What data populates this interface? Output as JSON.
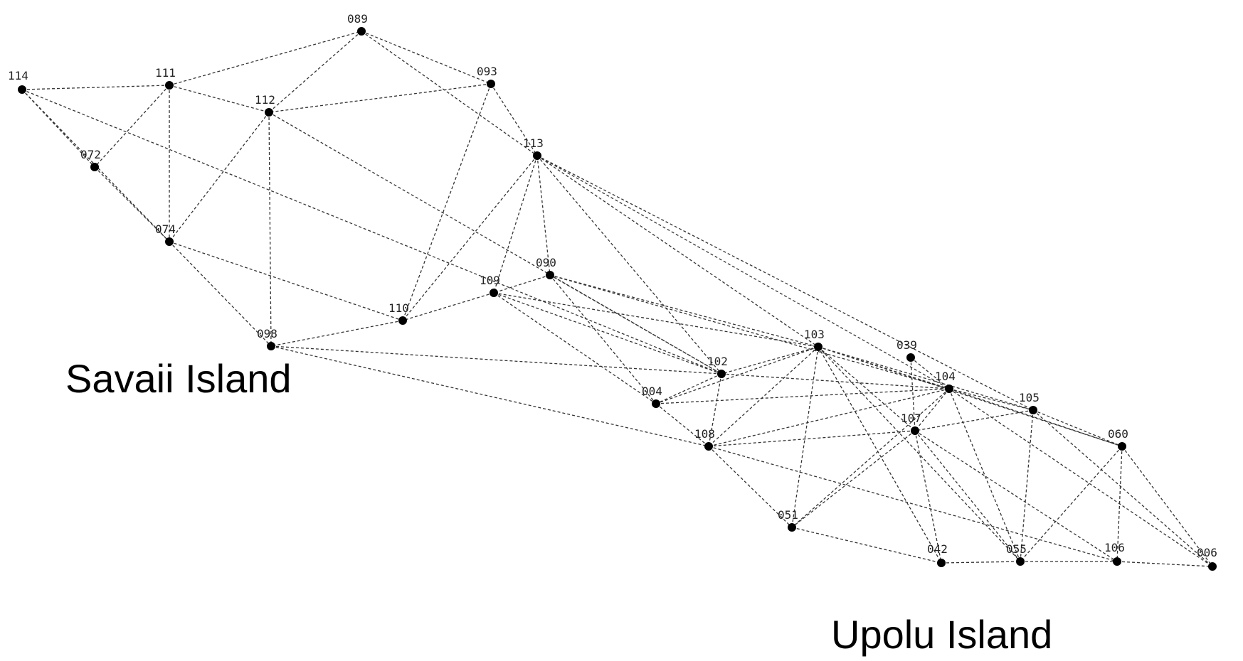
{
  "diagram": {
    "nodes": [
      {
        "id": "114",
        "label": "114"
      },
      {
        "id": "111",
        "label": "111"
      },
      {
        "id": "089",
        "label": "089"
      },
      {
        "id": "093",
        "label": "093"
      },
      {
        "id": "112",
        "label": "112"
      },
      {
        "id": "072",
        "label": "072"
      },
      {
        "id": "113",
        "label": "113"
      },
      {
        "id": "074",
        "label": "074"
      },
      {
        "id": "090",
        "label": "090"
      },
      {
        "id": "109",
        "label": "109"
      },
      {
        "id": "110",
        "label": "110"
      },
      {
        "id": "098",
        "label": "098"
      },
      {
        "id": "103",
        "label": "103"
      },
      {
        "id": "039",
        "label": "039"
      },
      {
        "id": "102",
        "label": "102"
      },
      {
        "id": "104",
        "label": "104"
      },
      {
        "id": "004",
        "label": "004"
      },
      {
        "id": "105",
        "label": "105"
      },
      {
        "id": "107",
        "label": "107"
      },
      {
        "id": "108",
        "label": "108"
      },
      {
        "id": "060",
        "label": "060"
      },
      {
        "id": "051",
        "label": "051"
      },
      {
        "id": "042",
        "label": "042"
      },
      {
        "id": "055",
        "label": "055"
      },
      {
        "id": "106",
        "label": "106"
      },
      {
        "id": "006",
        "label": "006"
      }
    ],
    "edges": [
      [
        "114",
        "111"
      ],
      [
        "114",
        "072"
      ],
      [
        "114",
        "074"
      ],
      [
        "114",
        "102"
      ],
      [
        "111",
        "089"
      ],
      [
        "111",
        "072"
      ],
      [
        "111",
        "074"
      ],
      [
        "111",
        "112"
      ],
      [
        "089",
        "112"
      ],
      [
        "089",
        "093"
      ],
      [
        "089",
        "113"
      ],
      [
        "093",
        "112"
      ],
      [
        "093",
        "113"
      ],
      [
        "093",
        "110"
      ],
      [
        "112",
        "098"
      ],
      [
        "112",
        "074"
      ],
      [
        "112",
        "102"
      ],
      [
        "072",
        "074"
      ],
      [
        "074",
        "098"
      ],
      [
        "074",
        "110"
      ],
      [
        "113",
        "110"
      ],
      [
        "113",
        "109"
      ],
      [
        "113",
        "090"
      ],
      [
        "113",
        "103"
      ],
      [
        "113",
        "104"
      ],
      [
        "113",
        "105"
      ],
      [
        "113",
        "102"
      ],
      [
        "090",
        "109"
      ],
      [
        "090",
        "103"
      ],
      [
        "090",
        "102"
      ],
      [
        "090",
        "004"
      ],
      [
        "090",
        "104"
      ],
      [
        "109",
        "110"
      ],
      [
        "109",
        "102"
      ],
      [
        "109",
        "103"
      ],
      [
        "109",
        "004"
      ],
      [
        "110",
        "098"
      ],
      [
        "098",
        "102"
      ],
      [
        "098",
        "108"
      ],
      [
        "103",
        "102"
      ],
      [
        "103",
        "004"
      ],
      [
        "103",
        "108"
      ],
      [
        "103",
        "051"
      ],
      [
        "103",
        "042"
      ],
      [
        "103",
        "104"
      ],
      [
        "103",
        "105"
      ],
      [
        "103",
        "107"
      ],
      [
        "103",
        "060"
      ],
      [
        "103",
        "055"
      ],
      [
        "039",
        "104"
      ],
      [
        "039",
        "107"
      ],
      [
        "102",
        "108"
      ],
      [
        "102",
        "004"
      ],
      [
        "102",
        "104"
      ],
      [
        "004",
        "104"
      ],
      [
        "004",
        "108"
      ],
      [
        "104",
        "107"
      ],
      [
        "104",
        "105"
      ],
      [
        "104",
        "108"
      ],
      [
        "104",
        "055"
      ],
      [
        "104",
        "006"
      ],
      [
        "104",
        "060"
      ],
      [
        "104",
        "051"
      ],
      [
        "105",
        "107"
      ],
      [
        "105",
        "055"
      ],
      [
        "105",
        "060"
      ],
      [
        "107",
        "108"
      ],
      [
        "107",
        "051"
      ],
      [
        "107",
        "042"
      ],
      [
        "107",
        "055"
      ],
      [
        "107",
        "106"
      ],
      [
        "108",
        "051"
      ],
      [
        "108",
        "106"
      ],
      [
        "060",
        "055"
      ],
      [
        "060",
        "106"
      ],
      [
        "060",
        "006"
      ],
      [
        "051",
        "042"
      ],
      [
        "042",
        "055"
      ],
      [
        "055",
        "106"
      ],
      [
        "106",
        "006"
      ],
      [
        "105",
        "006"
      ]
    ]
  },
  "labels": {
    "savaii": "Savaii Island",
    "upolu": "Upolu Island"
  }
}
